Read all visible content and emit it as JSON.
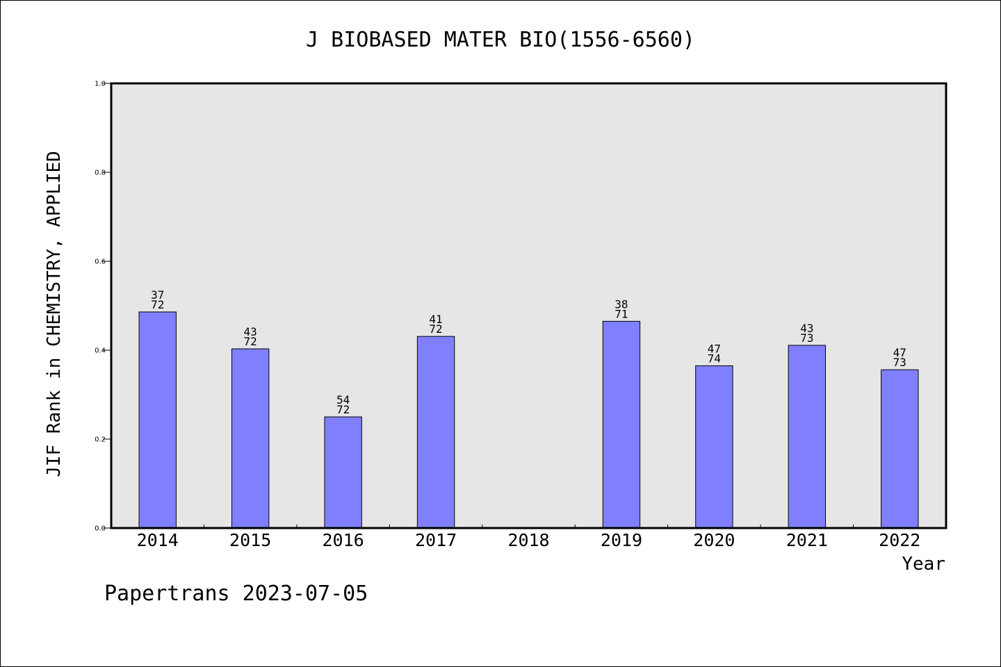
{
  "chart_data": {
    "type": "bar",
    "title": "J BIOBASED MATER BIO(1556-6560)",
    "xlabel": "Year",
    "ylabel": "JIF Rank in CHEMISTRY, APPLIED",
    "ylim": [
      0,
      1.0
    ],
    "yticks": [
      "0.0",
      "0.2",
      "0.4",
      "0.6",
      "0.8",
      "1.0"
    ],
    "grid": false,
    "categories": [
      "2014",
      "2015",
      "2016",
      "2017",
      "2018",
      "2019",
      "2020",
      "2021",
      "2022"
    ],
    "values": [
      0.486,
      0.403,
      0.25,
      0.431,
      null,
      0.465,
      0.365,
      0.411,
      0.356
    ],
    "rank_labels": [
      {
        "rank": "37",
        "total": "72"
      },
      {
        "rank": "43",
        "total": "72"
      },
      {
        "rank": "54",
        "total": "72"
      },
      {
        "rank": "41",
        "total": "72"
      },
      null,
      {
        "rank": "38",
        "total": "71"
      },
      {
        "rank": "47",
        "total": "74"
      },
      {
        "rank": "43",
        "total": "73"
      },
      {
        "rank": "47",
        "total": "73"
      }
    ],
    "colors": {
      "bar_fill": "#8080ff",
      "bar_stroke": "#000000",
      "plot_background": "#e6e6e6"
    }
  },
  "footer": {
    "text": "Papertrans 2023-07-05"
  }
}
